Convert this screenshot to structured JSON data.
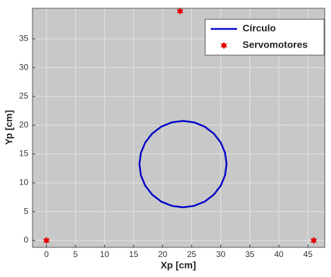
{
  "chart_data": {
    "type": "line",
    "xlabel": "Xp [cm]",
    "ylabel": "Yp [cm]",
    "xlim": [
      -2.4,
      47.9
    ],
    "ylim": [
      -1.2,
      40.3
    ],
    "xticks": [
      0,
      5,
      10,
      15,
      20,
      25,
      30,
      35,
      40,
      45
    ],
    "yticks": [
      0,
      5,
      10,
      15,
      20,
      25,
      30,
      35
    ],
    "grid": true,
    "legend": "northeast",
    "series": [
      {
        "name": "Círculo",
        "type": "line",
        "color": "#0000c8",
        "x": [
          31,
          30.74,
          30,
          28.8,
          27.25,
          25.44,
          23.5,
          21.56,
          19.75,
          18.2,
          17,
          16.26,
          16,
          16.26,
          17,
          18.2,
          19.75,
          21.56,
          23.5,
          25.44,
          27.25,
          28.8,
          30,
          30.74,
          31
        ],
        "values": [
          13.25,
          15.19,
          17,
          18.55,
          19.75,
          20.49,
          20.75,
          20.49,
          19.75,
          18.55,
          17,
          15.19,
          13.25,
          11.31,
          9.5,
          7.95,
          6.75,
          6.01,
          5.75,
          6.01,
          6.75,
          7.95,
          9.5,
          11.31,
          13.25
        ]
      },
      {
        "name": "Servomotores",
        "type": "scatter",
        "color": "#e00000",
        "x": [
          0,
          46,
          23
        ],
        "values": [
          0,
          0,
          39.8
        ]
      }
    ]
  }
}
